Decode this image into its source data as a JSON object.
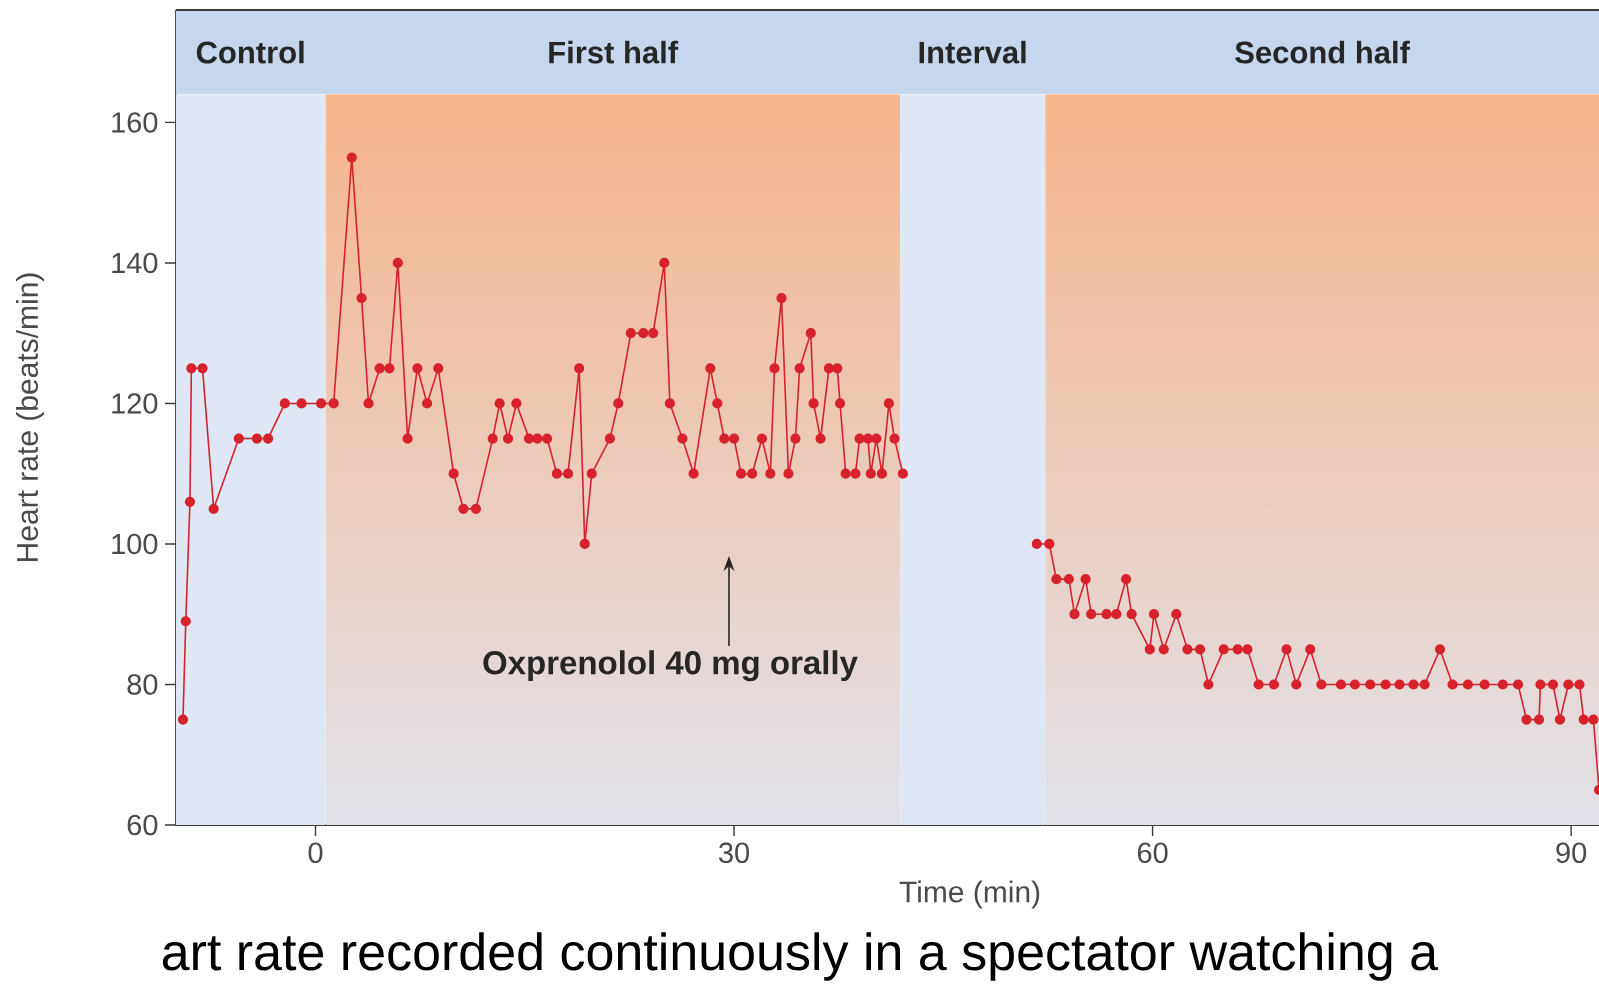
{
  "chart_data": {
    "type": "line",
    "xlabel": "Time (min)",
    "ylabel": "Heart rate (beats/min)",
    "x": [
      -9.5,
      -9.3,
      -9.0,
      -8.9,
      -8.1,
      -7.3,
      -5.5,
      -4.2,
      -3.4,
      -2.2,
      -1.0,
      0.4,
      1.3,
      2.6,
      3.3,
      3.8,
      4.6,
      5.3,
      5.9,
      6.6,
      7.3,
      8.0,
      8.8,
      9.9,
      10.6,
      11.5,
      12.7,
      13.2,
      13.8,
      14.4,
      15.3,
      15.9,
      16.6,
      17.3,
      18.1,
      18.9,
      19.3,
      19.8,
      21.1,
      21.7,
      22.6,
      23.5,
      24.2,
      25.0,
      25.4,
      26.3,
      27.1,
      28.3,
      28.8,
      29.3,
      30.0,
      30.5,
      31.3,
      32.0,
      32.6,
      32.9,
      33.4,
      33.9,
      34.4,
      34.7,
      35.5,
      35.7,
      36.2,
      36.8,
      37.4,
      37.6,
      38.0,
      38.7,
      39.0,
      39.6,
      39.8,
      40.2,
      40.6,
      41.1,
      41.5,
      42.1,
      47,
      51.7,
      52.6,
      53.1,
      54.0,
      54.4,
      55.2,
      55.6,
      56.7,
      57.4,
      58.1,
      58.5,
      59.8,
      60.1,
      60.8,
      61.7,
      62.5,
      63.4,
      64.0,
      65.1,
      66.1,
      66.8,
      67.6,
      68.7,
      69.6,
      70.3,
      71.3,
      72.1,
      73.5,
      74.5,
      75.6,
      76.7,
      77.7,
      78.7,
      79.5,
      80.6,
      81.5,
      82.6,
      83.8,
      85.1,
      86.2,
      86.8,
      87.7,
      87.8,
      88.7,
      89.2,
      89.8,
      90.6,
      90.9,
      91.6,
      92
    ],
    "series": [
      {
        "color": "#d7222c",
        "values": [
          75,
          89,
          106,
          125,
          125,
          105,
          115,
          115,
          115,
          120,
          120,
          120,
          120,
          155,
          135,
          120,
          125,
          125,
          140,
          115,
          125,
          120,
          125,
          110,
          105,
          105,
          115,
          120,
          115,
          120,
          115,
          115,
          115,
          110,
          110,
          125,
          100,
          110,
          115,
          120,
          130,
          130,
          130,
          140,
          120,
          115,
          110,
          125,
          120,
          115,
          115,
          110,
          110,
          115,
          110,
          125,
          135,
          110,
          115,
          125,
          130,
          120,
          115,
          125,
          125,
          120,
          110,
          110,
          115,
          115,
          110,
          115,
          110,
          120,
          115,
          110,
          null,
          100,
          100,
          95,
          95,
          90,
          95,
          90,
          90,
          90,
          95,
          90,
          85,
          90,
          85,
          90,
          85,
          85,
          80,
          85,
          85,
          85,
          80,
          80,
          85,
          80,
          85,
          80,
          80,
          80,
          80,
          80,
          80,
          80,
          80,
          85,
          80,
          80,
          80,
          80,
          80,
          75,
          75,
          80,
          80,
          75,
          80,
          80,
          75,
          75,
          65
        ]
      }
    ],
    "xlim": [
      -10,
      92
    ],
    "ylim": [
      60,
      176
    ],
    "xticks": [
      0,
      30,
      60,
      90
    ],
    "yticks": [
      60,
      80,
      100,
      120,
      140,
      160
    ],
    "bands": [
      {
        "axis": "y",
        "from": 164,
        "to": 176,
        "color": "#c6d6ec"
      },
      {
        "axis": "x",
        "from": -10,
        "to": 0.7,
        "label": "Control",
        "color": "#dfe6f4"
      },
      {
        "axis": "x",
        "from": 0.7,
        "to": 41.9,
        "label": "First half",
        "color": "#f7b48a"
      },
      {
        "axis": "x",
        "from": 41.9,
        "to": 52.3,
        "label": "Interval",
        "color": "#dfe6f4"
      },
      {
        "axis": "x",
        "from": 52.3,
        "to": 92,
        "label": "Second half",
        "color": "#f7b48a"
      }
    ],
    "annotations": [
      "Oxprenolol 40 mg orally",
      "art rate recorded continuously in a spectator watching a"
    ],
    "marker": "circle",
    "line_style": "solid"
  }
}
